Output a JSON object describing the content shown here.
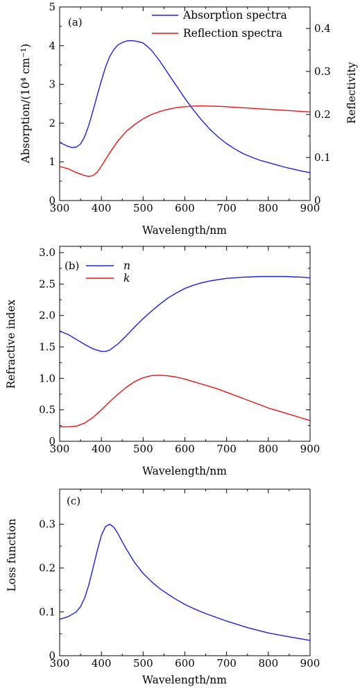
{
  "chart_data": [
    {
      "panel_label": "(a)",
      "type": "line",
      "xlabel": "Wavelength/nm",
      "ylabel": "Absorption/(10⁴ cm⁻¹)",
      "ylabel_right": "Reflectivity",
      "xlim": [
        300,
        900
      ],
      "ylim": [
        0,
        5
      ],
      "ylim_right": [
        0,
        0.45
      ],
      "xticks": [
        "300",
        "400",
        "500",
        "600",
        "700",
        "800",
        "900"
      ],
      "yticks": [
        "0",
        "1",
        "2",
        "3",
        "4",
        "5"
      ],
      "yticks_right": [
        "0",
        "0.1",
        "0.2",
        "0.3",
        "0.4"
      ],
      "legend_position": "top-right",
      "series": [
        {
          "name": "Absorption spectra",
          "axis": "left",
          "color": "#1f1fd6",
          "x": [
            300,
            310,
            320,
            330,
            340,
            350,
            360,
            370,
            380,
            390,
            400,
            410,
            420,
            430,
            440,
            450,
            460,
            470,
            480,
            490,
            500,
            510,
            520,
            540,
            560,
            580,
            600,
            620,
            640,
            660,
            680,
            700,
            720,
            740,
            760,
            780,
            800,
            820,
            840,
            860,
            880,
            900
          ],
          "y": [
            1.5,
            1.45,
            1.4,
            1.37,
            1.38,
            1.46,
            1.65,
            1.95,
            2.32,
            2.72,
            3.1,
            3.45,
            3.72,
            3.9,
            4.02,
            4.08,
            4.12,
            4.13,
            4.12,
            4.1,
            4.07,
            3.98,
            3.88,
            3.6,
            3.28,
            2.96,
            2.64,
            2.35,
            2.08,
            1.84,
            1.64,
            1.47,
            1.33,
            1.21,
            1.12,
            1.04,
            0.98,
            0.92,
            0.86,
            0.81,
            0.76,
            0.72
          ]
        },
        {
          "name": "Reflection spectra",
          "axis": "right",
          "color": "#e01414",
          "x": [
            300,
            320,
            340,
            360,
            370,
            380,
            390,
            400,
            420,
            440,
            460,
            480,
            500,
            520,
            540,
            560,
            580,
            600,
            620,
            640,
            660,
            680,
            700,
            750,
            800,
            850,
            900
          ],
          "y": [
            0.079,
            0.074,
            0.065,
            0.058,
            0.056,
            0.058,
            0.066,
            0.08,
            0.111,
            0.139,
            0.161,
            0.177,
            0.19,
            0.2,
            0.207,
            0.212,
            0.216,
            0.218,
            0.2195,
            0.22,
            0.2195,
            0.219,
            0.218,
            0.215,
            0.212,
            0.209,
            0.206
          ]
        }
      ]
    },
    {
      "panel_label": "(b)",
      "type": "line",
      "xlabel": "Wavelength/nm",
      "ylabel": "Refractive index",
      "xlim": [
        300,
        900
      ],
      "ylim": [
        0,
        3.1
      ],
      "xticks": [
        "300",
        "400",
        "500",
        "600",
        "700",
        "800",
        "900"
      ],
      "yticks": [
        "0",
        "0.5",
        "1.0",
        "1.5",
        "2.0",
        "2.5",
        "3.0"
      ],
      "legend_position": "top-left",
      "series": [
        {
          "name": "n",
          "color": "#1f1fd6",
          "x": [
            300,
            320,
            340,
            360,
            380,
            400,
            410,
            420,
            440,
            460,
            480,
            500,
            520,
            540,
            560,
            580,
            600,
            620,
            640,
            660,
            680,
            700,
            720,
            740,
            760,
            780,
            800,
            820,
            840,
            860,
            880,
            900
          ],
          "y": [
            1.75,
            1.7,
            1.62,
            1.54,
            1.47,
            1.43,
            1.43,
            1.45,
            1.55,
            1.68,
            1.82,
            1.95,
            2.07,
            2.18,
            2.28,
            2.36,
            2.43,
            2.48,
            2.52,
            2.55,
            2.57,
            2.59,
            2.6,
            2.61,
            2.615,
            2.62,
            2.62,
            2.62,
            2.62,
            2.615,
            2.61,
            2.6
          ]
        },
        {
          "name": "k",
          "color": "#e01414",
          "x": [
            300,
            320,
            340,
            360,
            380,
            400,
            420,
            440,
            460,
            480,
            500,
            520,
            540,
            560,
            580,
            600,
            620,
            640,
            660,
            680,
            700,
            720,
            740,
            760,
            780,
            800,
            820,
            840,
            860,
            880,
            900
          ],
          "y": [
            0.23,
            0.23,
            0.24,
            0.29,
            0.38,
            0.5,
            0.63,
            0.75,
            0.86,
            0.95,
            1.01,
            1.045,
            1.05,
            1.04,
            1.02,
            0.99,
            0.95,
            0.91,
            0.87,
            0.83,
            0.78,
            0.73,
            0.68,
            0.63,
            0.58,
            0.53,
            0.49,
            0.45,
            0.41,
            0.37,
            0.33
          ]
        }
      ]
    },
    {
      "panel_label": "(c)",
      "type": "line",
      "xlabel": "Wavelength/nm",
      "ylabel": "Loss function",
      "xlim": [
        300,
        900
      ],
      "ylim": [
        0,
        0.38
      ],
      "xticks": [
        "300",
        "400",
        "500",
        "600",
        "700",
        "800",
        "900"
      ],
      "yticks": [
        "0",
        "0.1",
        "0.2",
        "0.3"
      ],
      "series": [
        {
          "name": "",
          "color": "#1f1fd6",
          "x": [
            300,
            320,
            340,
            350,
            360,
            370,
            380,
            390,
            400,
            410,
            420,
            430,
            440,
            450,
            460,
            480,
            500,
            520,
            540,
            560,
            580,
            600,
            620,
            650,
            700,
            750,
            800,
            850,
            900
          ],
          "y": [
            0.083,
            0.089,
            0.1,
            0.112,
            0.132,
            0.162,
            0.2,
            0.24,
            0.275,
            0.295,
            0.3,
            0.293,
            0.278,
            0.26,
            0.243,
            0.212,
            0.188,
            0.169,
            0.153,
            0.14,
            0.128,
            0.117,
            0.108,
            0.096,
            0.079,
            0.064,
            0.052,
            0.043,
            0.035
          ]
        }
      ]
    }
  ]
}
